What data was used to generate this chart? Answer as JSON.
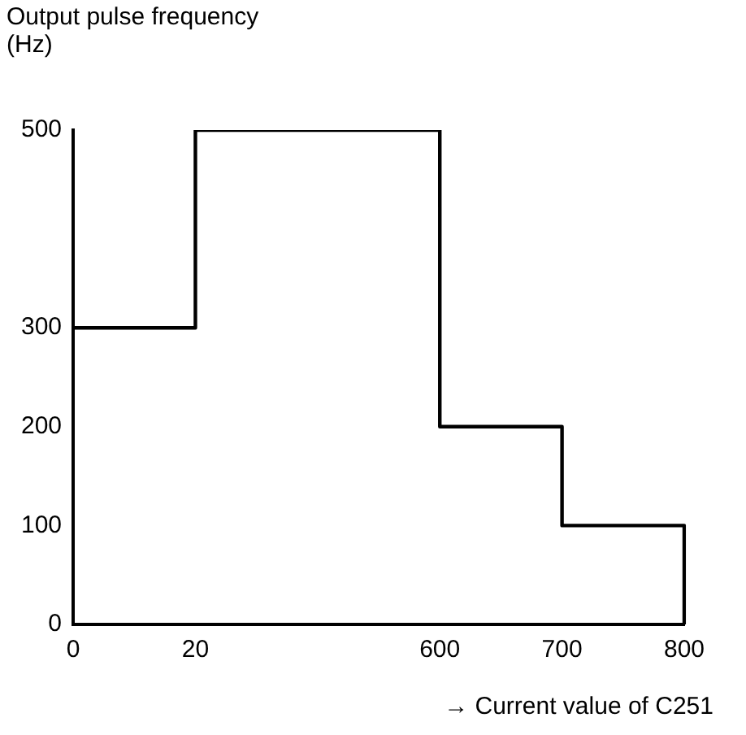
{
  "chart_data": {
    "type": "step",
    "ylabel": "Output pulse frequency (Hz)",
    "xlabel": "→ Current value of C251",
    "categories": [
      "0",
      "20",
      null,
      "600",
      "700",
      "800"
    ],
    "series": [
      {
        "color": "#000000",
        "values": [
          300,
          500,
          500,
          200,
          100,
          0
        ]
      }
    ],
    "ylim": [
      0,
      500
    ],
    "yticks": [
      0,
      100,
      200,
      300,
      500
    ],
    "grid": false,
    "legend": false,
    "marker": "none",
    "line_style": "solid"
  }
}
